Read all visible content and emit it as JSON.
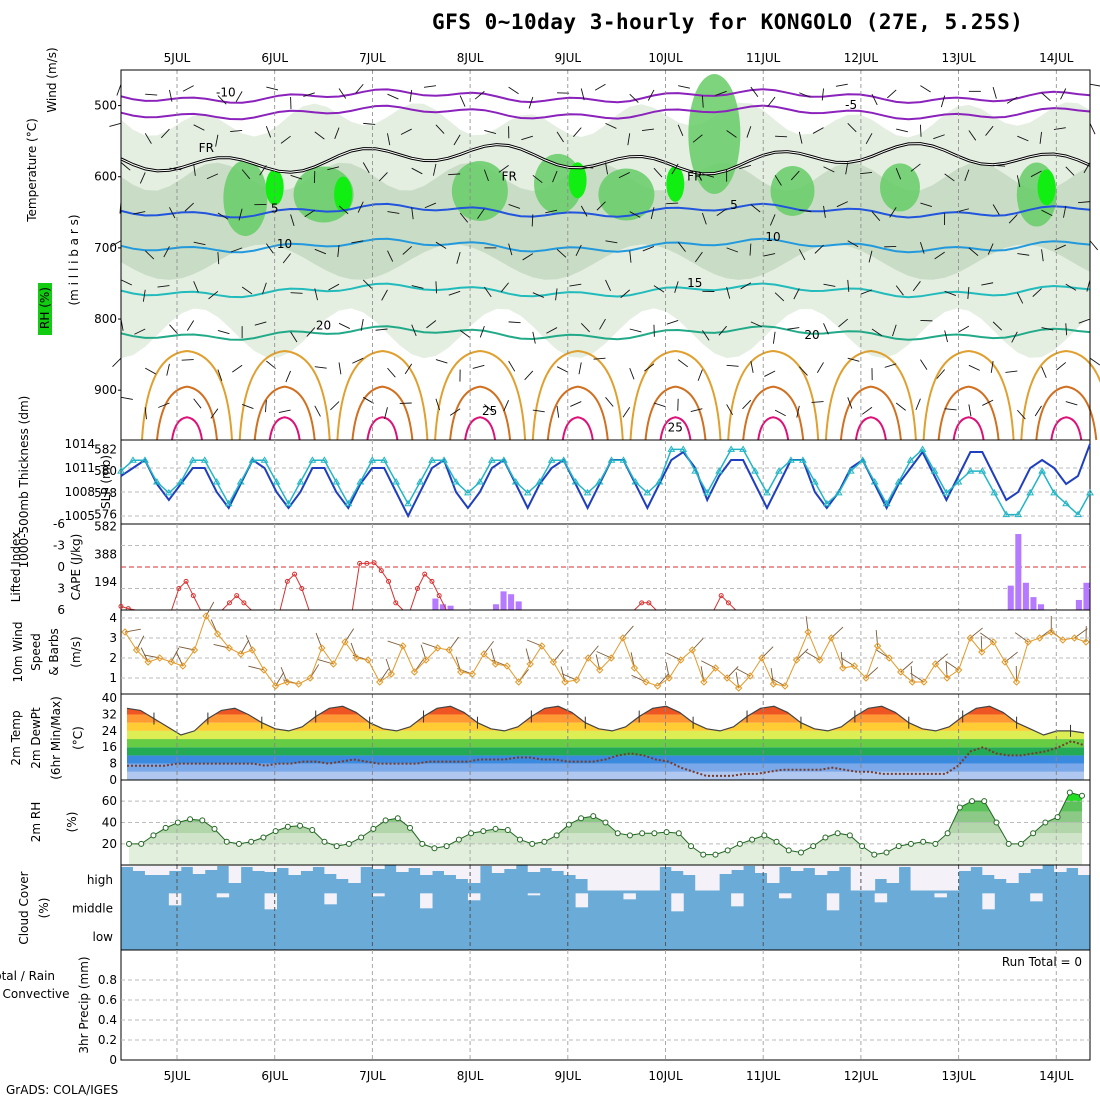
{
  "title": "GFS 0~10day 3-hourly for KONGOLO (27E, 5.25S)",
  "credit": "GrADS: COLA/IGES",
  "dates": [
    "5JUL",
    "6JUL",
    "7JUL",
    "8JUL",
    "9JUL",
    "10JUL",
    "11JUL",
    "12JUL",
    "13JUL",
    "14JUL"
  ],
  "colors": {
    "rh_green": "#22cc22",
    "temp_line": "#2255dd",
    "slp": "#1f3fbf",
    "thickness": "#22b5c5",
    "cape": "#b57aff",
    "lifted": "#d93030",
    "wind": "#e39a2a",
    "cloud": "#6aabd8"
  },
  "chart_data": [
    {
      "type": "heatmap",
      "panel": "upper-air",
      "ylabels": [
        "Temperature (°C)",
        "Wind (m/s)",
        "RH (%)",
        "(m i l l i b a r s)"
      ],
      "y_ticks": [
        "500",
        "600",
        "700",
        "800",
        "900"
      ],
      "ylim": [
        970,
        450
      ],
      "contour_labels": [
        {
          "text": "FR",
          "d": 0.3,
          "p": 565
        },
        {
          "text": "FR",
          "d": 3.4,
          "p": 605
        },
        {
          "text": "FR",
          "d": 5.3,
          "p": 605
        },
        {
          "text": "5",
          "d": 1.0,
          "p": 650
        },
        {
          "text": "5",
          "d": 5.7,
          "p": 645
        },
        {
          "text": "10",
          "d": 1.1,
          "p": 700
        },
        {
          "text": "10",
          "d": 6.1,
          "p": 690
        },
        {
          "text": "15",
          "d": 5.3,
          "p": 755
        },
        {
          "text": "20",
          "d": 1.5,
          "p": 815
        },
        {
          "text": "20",
          "d": 6.5,
          "p": 828
        },
        {
          "text": "-5",
          "d": 6.9,
          "p": 505
        },
        {
          "text": "-10",
          "d": 0.5,
          "p": 487
        },
        {
          "text": "25",
          "d": 3.2,
          "p": 935
        },
        {
          "text": "25",
          "d": 5.1,
          "p": 958
        }
      ]
    },
    {
      "type": "line",
      "panel": "slp-thickness",
      "ylabel_left": "1000-500mb Thickness (dm)",
      "ylabel_right": "SLP (mb)",
      "thickness_ticks": [
        "582",
        "580",
        "578",
        "576"
      ],
      "slp_ticks": [
        "1014",
        "1011",
        "1008",
        "1005"
      ],
      "series": [
        {
          "values": [
            1010,
            1011,
            1012,
            1009,
            1007,
            1009,
            1011,
            1011,
            1008,
            1006,
            1009,
            1012,
            1011,
            1008,
            1006,
            1008,
            1011,
            1011,
            1008,
            1006,
            1009,
            1011,
            1011,
            1008,
            1005,
            1008,
            1011,
            1012,
            1008,
            1006,
            1008,
            1011,
            1012,
            1009,
            1006,
            1009,
            1011,
            1012,
            1009,
            1006,
            1009,
            1012,
            1012,
            1009,
            1006,
            1009,
            1012,
            1013,
            1011,
            1007,
            1010,
            1012,
            1012,
            1009,
            1006,
            1009,
            1012,
            1012,
            1008,
            1006,
            1008,
            1011,
            1012,
            1009,
            1006,
            1009,
            1011,
            1013,
            1010,
            1007,
            1010,
            1013,
            1013,
            1010,
            1007,
            1008,
            1011,
            1012,
            1011,
            1009,
            1010,
            1014
          ]
        },
        {
          "values": [
            580,
            581,
            581,
            579,
            578,
            579,
            581,
            581,
            579,
            577,
            579,
            581,
            581,
            579,
            577,
            579,
            581,
            581,
            579,
            577,
            579,
            581,
            581,
            579,
            577,
            579,
            581,
            581,
            579,
            578,
            579,
            581,
            581,
            579,
            578,
            579,
            581,
            581,
            579,
            578,
            579,
            581,
            581,
            579,
            578,
            579,
            582,
            582,
            580,
            578,
            580,
            582,
            582,
            580,
            578,
            580,
            581,
            581,
            579,
            577,
            578,
            580,
            581,
            579,
            577,
            579,
            581,
            582,
            580,
            578,
            579,
            580,
            580,
            578,
            576,
            576,
            578,
            580,
            578,
            577,
            576,
            578
          ]
        }
      ]
    },
    {
      "type": "bar",
      "panel": "cape-lifted",
      "ylabel_left": "Lifted Index",
      "ylabel_right": "CAPE (J/kg)",
      "li_ticks": [
        "-6",
        "-3",
        "0",
        "3",
        "6"
      ],
      "cape_ticks": [
        "582",
        "388",
        "194"
      ],
      "cape_values": [
        0,
        0,
        0,
        0,
        0,
        0,
        0,
        0,
        0,
        0,
        0,
        0,
        0,
        0,
        0,
        0,
        0,
        0,
        0,
        0,
        0,
        0,
        0,
        0,
        0,
        0,
        0,
        0,
        0,
        0,
        0,
        0,
        0,
        0,
        0,
        0,
        0,
        0,
        0,
        0,
        0,
        80,
        40,
        30,
        0,
        0,
        0,
        0,
        0,
        40,
        130,
        110,
        60,
        0,
        0,
        0,
        0,
        0,
        0,
        0,
        0,
        0,
        0,
        0,
        0,
        0,
        0,
        0,
        0,
        0,
        0,
        0,
        0,
        0,
        0,
        0,
        0,
        0,
        0,
        0,
        0,
        0,
        0,
        0,
        0,
        0,
        0,
        0,
        0,
        0,
        0,
        0,
        0,
        0,
        0,
        0,
        0,
        0,
        0,
        0,
        0,
        0,
        0,
        0,
        0,
        0,
        0,
        0,
        0,
        0,
        0,
        0,
        0,
        0,
        0,
        0,
        0,
        170,
        530,
        190,
        90,
        40,
        0,
        0,
        0,
        0,
        70,
        190
      ],
      "li_values": [
        5.5,
        5.8,
        6,
        6,
        6,
        6,
        6,
        6,
        3,
        2,
        4,
        6,
        6,
        6,
        6,
        5,
        4,
        5,
        6,
        6,
        6,
        6,
        6,
        2,
        1,
        3,
        6,
        6,
        6,
        6,
        6,
        6,
        6,
        -0.5,
        -0.5,
        -0.6,
        0.5,
        2,
        5,
        6,
        6,
        3,
        1,
        2,
        4,
        6,
        6,
        6,
        6,
        6,
        6,
        6,
        6,
        6,
        6,
        6,
        6,
        6,
        6,
        6,
        6,
        6,
        6,
        6,
        6,
        6,
        6,
        6,
        6,
        6,
        6,
        6,
        5,
        5,
        6,
        6,
        6,
        6,
        6,
        6,
        6,
        6,
        6,
        4,
        5,
        6,
        6,
        6,
        6,
        6,
        6,
        6,
        6,
        6,
        6,
        6,
        6,
        6,
        6,
        6,
        6,
        6,
        6,
        6,
        6,
        6,
        6,
        6,
        6,
        6,
        6,
        6,
        6,
        6,
        6,
        6,
        6,
        6,
        6,
        6,
        6,
        6,
        6,
        6,
        6,
        6,
        6,
        6,
        6,
        6,
        6,
        6,
        6,
        6,
        6
      ]
    },
    {
      "type": "line",
      "panel": "wind10m",
      "ylabel": "10m Wind Speed & Barbs (m/s)",
      "y_ticks": [
        "4",
        "3",
        "2",
        "1"
      ],
      "series": [
        {
          "values": [
            3.3,
            2.4,
            1.8,
            2.0,
            1.8,
            1.6,
            2.4,
            4.1,
            3.2,
            2.5,
            2.2,
            2.4,
            1.4,
            0.6,
            0.8,
            0.7,
            1.0,
            2.5,
            1.7,
            2.8,
            2.0,
            1.9,
            0.8,
            1.2,
            2.6,
            1.3,
            1.9,
            2.5,
            2.4,
            1.3,
            1.2,
            2.2,
            1.7,
            1.6,
            0.8,
            1.7,
            2.6,
            1.8,
            0.8,
            0.9,
            2.0,
            1.4,
            2.0,
            3.0,
            1.5,
            0.8,
            0.6,
            1.0,
            1.9,
            2.4,
            0.8,
            1.5,
            1.0,
            0.5,
            1.1,
            2.0,
            0.7,
            0.6,
            1.9,
            3.3,
            1.9,
            3.0,
            1.5,
            1.6,
            1.0,
            2.6,
            2.0,
            1.3,
            0.8,
            0.8,
            1.7,
            1.0,
            1.4,
            3.0,
            2.3,
            2.8,
            1.8,
            0.8,
            2.8,
            3.0,
            3.3,
            2.9,
            3.0,
            2.8
          ]
        }
      ]
    },
    {
      "type": "area",
      "panel": "temp-dewpoint",
      "ylabel": "2m Temp 2m DewPt (6hr Min/Max) (°C)",
      "y_ticks": [
        "40",
        "32",
        "24",
        "16",
        "8",
        "0"
      ],
      "series": [
        {
          "values": [
            35,
            34,
            30,
            26,
            22,
            24,
            30,
            34,
            35,
            32,
            28,
            25,
            24,
            26,
            31,
            35,
            36,
            33,
            28,
            25,
            24,
            26,
            31,
            35,
            36,
            33,
            28,
            25,
            24,
            26,
            31,
            35,
            36,
            33,
            28,
            25,
            24,
            26,
            31,
            35,
            36,
            33,
            28,
            25,
            24,
            26,
            31,
            35,
            36,
            33,
            28,
            25,
            24,
            26,
            31,
            35,
            36,
            33,
            28,
            25,
            24,
            26,
            31,
            35,
            36,
            33,
            28,
            25,
            22,
            24,
            24,
            23
          ]
        },
        {
          "values": [
            7,
            7,
            7,
            7,
            8,
            8,
            8,
            8,
            8,
            8,
            8,
            7,
            8,
            8,
            9,
            9,
            8,
            9,
            10,
            9,
            8,
            8,
            8,
            8,
            9,
            9,
            9,
            9,
            10,
            10,
            10,
            11,
            11,
            10,
            10,
            9,
            9,
            9,
            10,
            12,
            13,
            12,
            10,
            9,
            6,
            4,
            2,
            2,
            2,
            3,
            3,
            4,
            5,
            5,
            5,
            5,
            6,
            5,
            4,
            4,
            3,
            3,
            3,
            3,
            3,
            3,
            7,
            14,
            16,
            13,
            12,
            12,
            13,
            14,
            16,
            19,
            17
          ]
        }
      ]
    },
    {
      "type": "area",
      "panel": "rh2m",
      "ylabel": "2m RH (%)",
      "y_ticks": [
        "60",
        "40",
        "20"
      ],
      "series": [
        {
          "values": [
            20,
            20,
            28,
            35,
            40,
            43,
            42,
            34,
            22,
            20,
            22,
            26,
            32,
            36,
            37,
            33,
            22,
            18,
            20,
            26,
            34,
            42,
            44,
            35,
            20,
            16,
            18,
            24,
            30,
            32,
            34,
            33,
            24,
            20,
            22,
            28,
            38,
            44,
            46,
            40,
            30,
            28,
            30,
            30,
            31,
            30,
            18,
            10,
            10,
            14,
            20,
            24,
            28,
            22,
            14,
            12,
            18,
            26,
            30,
            28,
            18,
            10,
            12,
            18,
            20,
            22,
            20,
            30,
            54,
            60,
            60,
            40,
            20,
            20,
            30,
            40,
            45,
            68,
            65
          ]
        }
      ]
    },
    {
      "type": "heatmap",
      "panel": "cloud-cover",
      "ylabel": "Cloud Cover (%)",
      "levels": [
        "high",
        "middle",
        "low"
      ]
    },
    {
      "type": "bar",
      "panel": "precip",
      "ylabel": "3hr Precip (mm)",
      "ylabel_left": "Total / Rain",
      "ylabel_left2": "Convective",
      "y_ticks": [
        "0.8",
        "0.6",
        "0.4",
        "0.2",
        "0"
      ],
      "run_total": "Run Total = 0",
      "values": []
    }
  ]
}
